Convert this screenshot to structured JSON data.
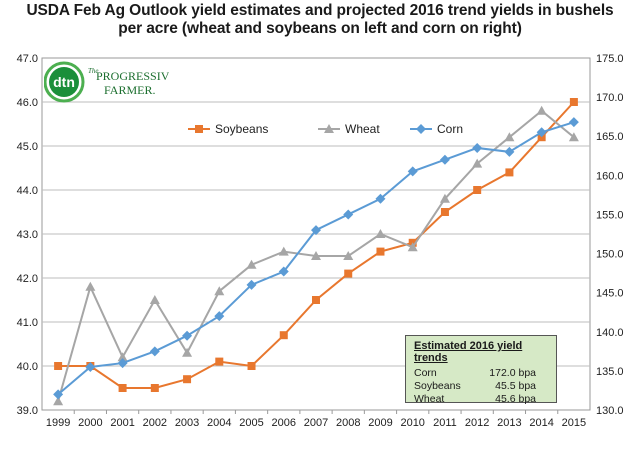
{
  "title": "USDA Feb Ag Outlook yield estimates and projected 2016 trend yields in bushels per acre (wheat and soybeans on left and corn on right)",
  "logo": {
    "mark": "dtn",
    "line1": "PROGRESSIVE",
    "line2": "FARMER.",
    "small": "The"
  },
  "estimates": {
    "heading": "Estimated 2016 yield trends",
    "rows": [
      {
        "name": "Corn",
        "value": "172.0 bpa"
      },
      {
        "name": "Soybeans",
        "value": "45.5 bpa"
      },
      {
        "name": "Wheat",
        "value": "45.6 bpa"
      }
    ]
  },
  "chart_data": {
    "type": "line",
    "categories": [
      "1999",
      "2000",
      "2001",
      "2002",
      "2003",
      "2004",
      "2005",
      "2006",
      "2007",
      "2008",
      "2009",
      "2010",
      "2011",
      "2012",
      "2013",
      "2014",
      "2015"
    ],
    "ylim": [
      39.0,
      47.0
    ],
    "y_ticks": [
      "39.0",
      "40.0",
      "41.0",
      "42.0",
      "43.0",
      "44.0",
      "45.0",
      "46.0",
      "47.0"
    ],
    "y2lim": [
      130.0,
      175.0
    ],
    "y2_ticks": [
      "130.0",
      "135.0",
      "140.0",
      "145.0",
      "150.0",
      "155.0",
      "160.0",
      "165.0",
      "170.0",
      "175.0"
    ],
    "legend_position": "upper-middle",
    "grid": "horizontal",
    "series": [
      {
        "name": "Soybeans",
        "axis": "left",
        "color": "#e8772e",
        "marker": "square",
        "values": [
          40.0,
          40.0,
          39.5,
          39.5,
          39.7,
          40.1,
          40.0,
          40.7,
          41.5,
          42.1,
          42.6,
          42.8,
          43.5,
          44.0,
          44.4,
          45.2,
          46.0
        ]
      },
      {
        "name": "Wheat",
        "axis": "left",
        "color": "#a6a6a6",
        "marker": "triangle",
        "values": [
          39.2,
          41.8,
          40.2,
          41.5,
          40.3,
          41.7,
          42.3,
          42.6,
          42.5,
          42.5,
          43.0,
          42.7,
          43.8,
          44.6,
          45.2,
          45.8,
          45.2
        ]
      },
      {
        "name": "Corn",
        "axis": "right",
        "color": "#5b9bd5",
        "marker": "diamond",
        "values": [
          132.0,
          135.5,
          136.0,
          137.5,
          139.5,
          142.0,
          146.0,
          147.7,
          153.0,
          155.0,
          157.0,
          160.5,
          162.0,
          163.5,
          163.0,
          165.5,
          166.8
        ]
      }
    ]
  }
}
